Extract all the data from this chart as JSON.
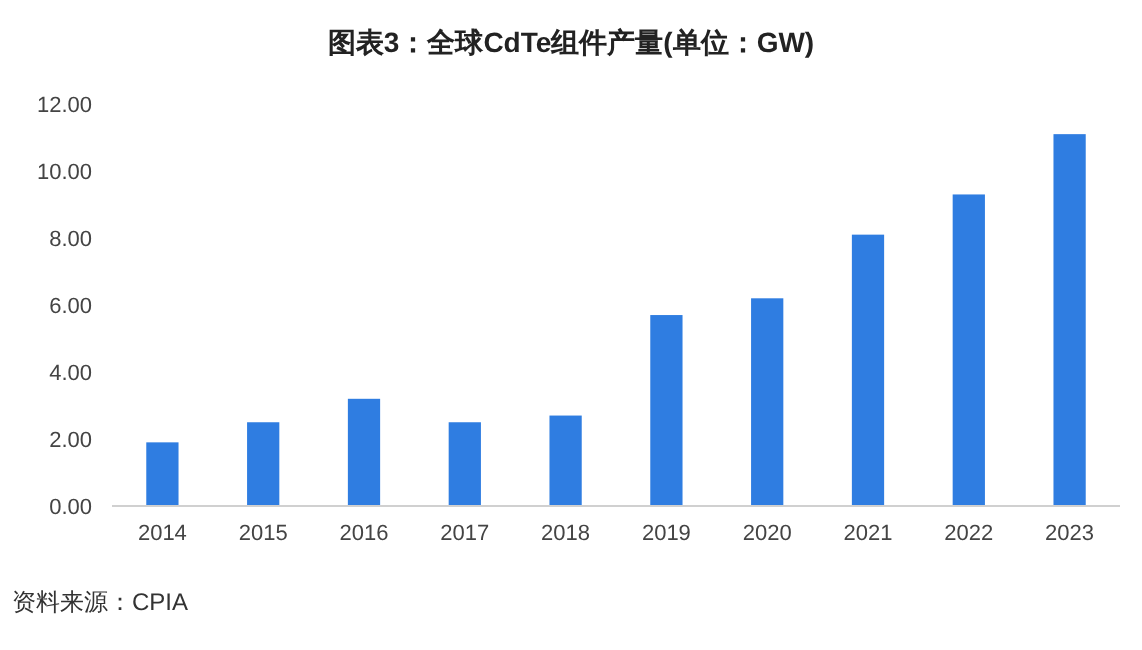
{
  "chart_data": {
    "type": "bar",
    "title": "图表3：全球CdTe组件产量(单位：GW)",
    "categories": [
      "2014",
      "2015",
      "2016",
      "2017",
      "2018",
      "2019",
      "2020",
      "2021",
      "2022",
      "2023"
    ],
    "values": [
      1.9,
      2.5,
      3.2,
      2.5,
      2.7,
      5.7,
      6.2,
      8.1,
      9.3,
      11.1
    ],
    "color": "#2f7de1",
    "ylim": [
      0,
      12
    ],
    "yticks": [
      {
        "value": 0,
        "label": "0.00"
      },
      {
        "value": 2,
        "label": "2.00"
      },
      {
        "value": 4,
        "label": "4.00"
      },
      {
        "value": 6,
        "label": "6.00"
      },
      {
        "value": 8,
        "label": "8.00"
      },
      {
        "value": 10,
        "label": "10.00"
      },
      {
        "value": 12,
        "label": "12.00"
      }
    ],
    "grid": false,
    "annotations": [
      "资料来源：CPIA"
    ]
  }
}
